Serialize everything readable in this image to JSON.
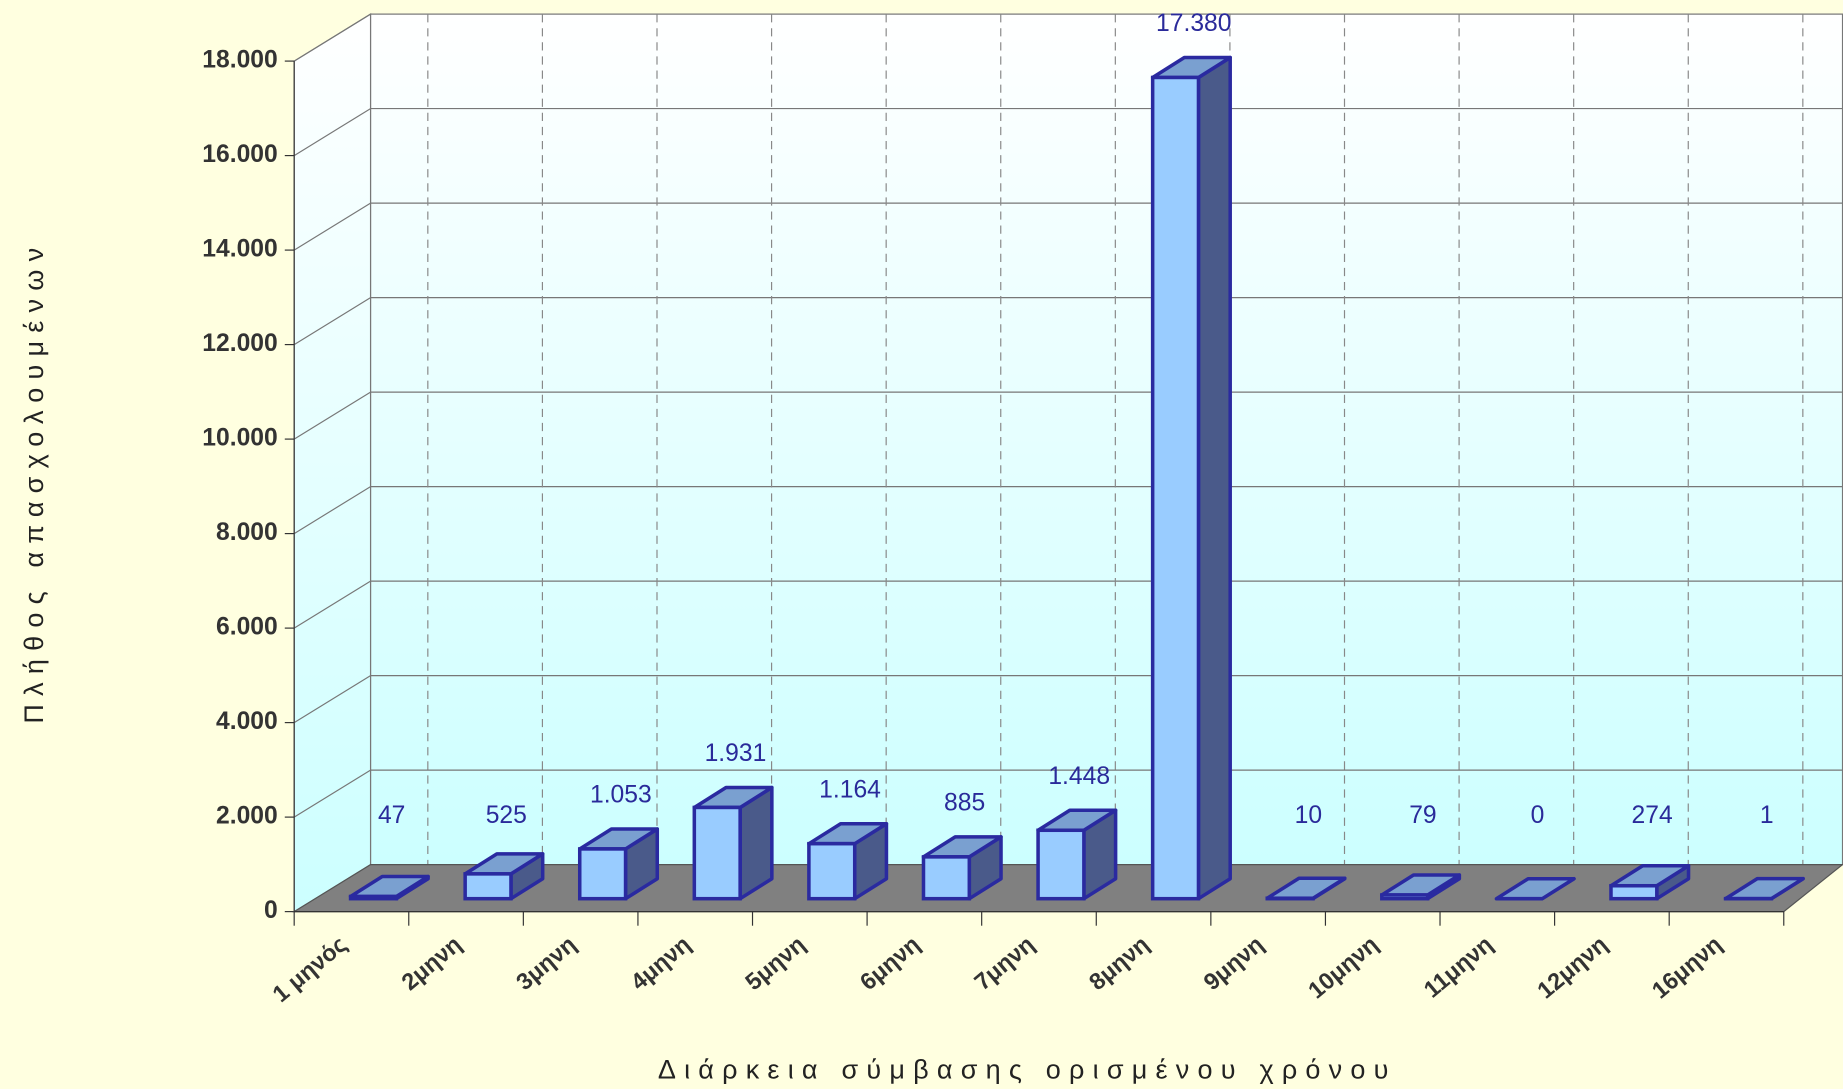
{
  "chart_data": {
    "type": "bar3d",
    "x_label": "Διάρκεια σύμβασης ορισμένου χρόνου",
    "y_label": "Πλήθος απασχολουμένων",
    "categories": [
      "1 μηνός",
      "2μηνη",
      "3μηνη",
      "4μηνη",
      "5μηνη",
      "6μηνη",
      "7μηνη",
      "8μηνη",
      "9μηνη",
      "10μηνη",
      "11μηνη",
      "12μηνη",
      "16μηνη"
    ],
    "values": [
      47,
      525,
      1053,
      1931,
      1164,
      885,
      1448,
      17380,
      10,
      79,
      0,
      274,
      1
    ],
    "value_labels": [
      "47",
      "525",
      "1.053",
      "1.931",
      "1.164",
      "885",
      "1.448",
      "17.380",
      "10",
      "79",
      "0",
      "274",
      "1"
    ],
    "color": "#99ccff",
    "ylim": [
      0,
      18000
    ],
    "yticks": [
      0,
      {
        "value": 2000,
        "label": "2.000"
      },
      {
        "value": 4000,
        "label": "4.000"
      },
      {
        "value": 6000,
        "label": "6.000"
      },
      {
        "value": 8000,
        "label": "8.000"
      },
      {
        "value": 10000,
        "label": "10.000"
      },
      {
        "value": 12000,
        "label": "12.000"
      },
      {
        "value": 14000,
        "label": "14.000"
      },
      {
        "value": 16000,
        "label": "16.000"
      },
      {
        "value": 18000,
        "label": "18.000"
      }
    ],
    "grid": true
  }
}
